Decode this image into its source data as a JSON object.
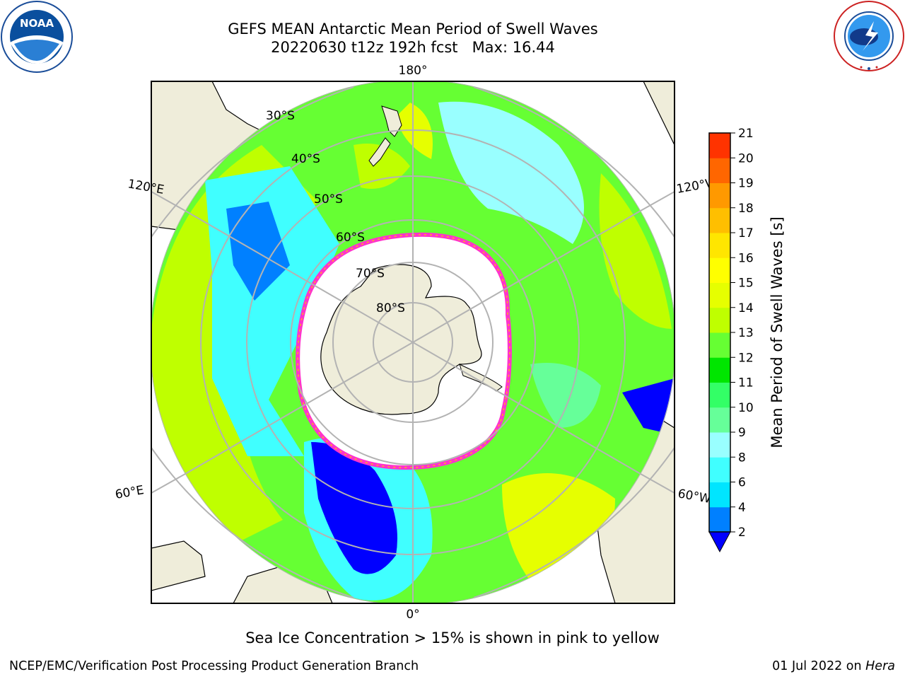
{
  "header": {
    "title_line1": "GEFS MEAN Antarctic Mean Period of Swell Waves",
    "title_line2": "20220630 t12z 192h fcst   Max: 16.44"
  },
  "logos": {
    "left": {
      "icon": "noaa-logo",
      "text": "NOAA"
    },
    "right": {
      "icon": "nws-logo",
      "ring_text": "NATIONAL WEATHER SERVICE"
    }
  },
  "map": {
    "projection": "south-polar-stereographic",
    "lon_labels": {
      "top": "180°",
      "bottom": "0°",
      "left_upper": "120°E",
      "left_lower": "60°E",
      "right_upper": "120°W",
      "right_lower": "60°W"
    },
    "lat_labels": [
      "30°S",
      "40°S",
      "50°S",
      "60°S",
      "70°S",
      "80°S"
    ],
    "colors": {
      "land": "#efedda",
      "ice_edge": "#ff33cc",
      "ice_fringe": "#ffb31a",
      "grid": "#b3b3b3"
    }
  },
  "colorbar": {
    "label": "Mean Period of Swell Waves [s]",
    "ticks": [
      "2",
      "4",
      "6",
      "8",
      "9",
      "10",
      "11",
      "12",
      "13",
      "14",
      "15",
      "16",
      "17",
      "18",
      "19",
      "20",
      "21"
    ],
    "colors": [
      "#0080ff",
      "#00e5ff",
      "#40ffff",
      "#99ffff",
      "#66ff99",
      "#33ff66",
      "#00e600",
      "#66ff33",
      "#bfff00",
      "#e6ff00",
      "#ffff00",
      "#ffe600",
      "#ffbf00",
      "#ff9900",
      "#ff6600",
      "#ff3300",
      "#ff0000"
    ],
    "under_color": "#0000ff"
  },
  "caption": "Sea Ice Concentration > 15% is shown in pink to yellow",
  "footer": {
    "org": "NCEP/EMC/Verification Post Processing Product Generation Branch",
    "date": "01 Jul 2022 on ",
    "host": "Hera"
  }
}
